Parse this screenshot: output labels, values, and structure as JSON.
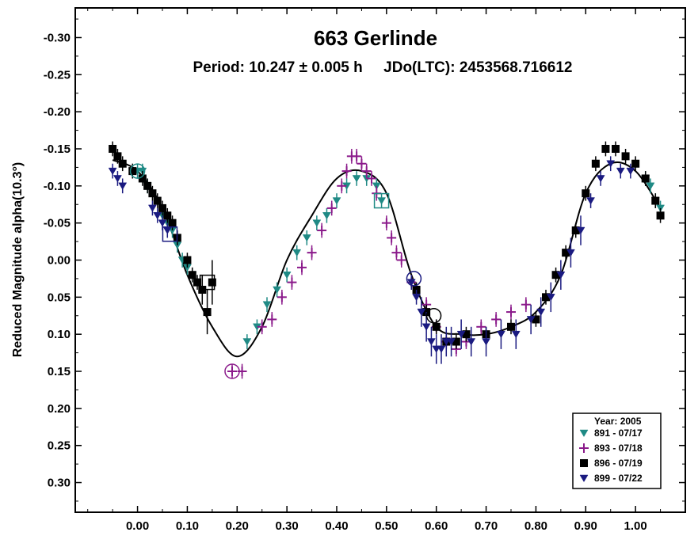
{
  "chart_data": {
    "type": "scatter",
    "title": "663 Gerlinde",
    "subtitle": "Period: 10.247 ± 0.005 h     JDo(LTC): 2453568.716612",
    "xlabel": "",
    "ylabel": "Reduced Magnitude alpha(10.3°)",
    "xlim": [
      -0.125,
      1.1
    ],
    "ylim": [
      -0.34,
      0.34
    ],
    "y_inverted": true,
    "grid": false,
    "x_ticks": [
      "0.00",
      "0.10",
      "0.20",
      "0.30",
      "0.40",
      "0.50",
      "0.60",
      "0.70",
      "0.80",
      "0.90",
      "1.00"
    ],
    "y_ticks": [
      "-0.30",
      "-0.25",
      "-0.20",
      "-0.15",
      "-0.10",
      "-0.05",
      "0.00",
      "0.05",
      "0.10",
      "0.15",
      "0.20",
      "0.25",
      "0.30"
    ],
    "legend": {
      "title": "Year: 2005",
      "placement": "bottom-right",
      "entries": [
        "891 - 07/17",
        "893 - 07/18",
        "896 - 07/19",
        "899 - 07/22"
      ]
    },
    "fit_curve": {
      "x": [
        -0.05,
        0.0,
        0.05,
        0.1,
        0.15,
        0.2,
        0.25,
        0.3,
        0.35,
        0.4,
        0.45,
        0.5,
        0.55,
        0.6,
        0.65,
        0.7,
        0.75,
        0.8,
        0.85,
        0.9,
        0.95,
        1.0,
        1.05
      ],
      "y": [
        -0.135,
        -0.12,
        -0.07,
        0.02,
        0.09,
        0.13,
        0.09,
        0.0,
        -0.06,
        -0.11,
        -0.12,
        -0.09,
        0.02,
        0.09,
        0.1,
        0.1,
        0.09,
        0.07,
        0.02,
        -0.09,
        -0.13,
        -0.12,
        -0.07
      ]
    },
    "series": [
      {
        "name": "891 - 07/17",
        "color": "#1f8a85",
        "marker": "triangle-down",
        "x": [
          -0.01,
          0.0,
          0.01,
          0.02,
          0.05,
          0.06,
          0.07,
          0.08,
          0.09,
          0.1,
          0.11,
          0.22,
          0.24,
          0.26,
          0.28,
          0.3,
          0.32,
          0.34,
          0.36,
          0.38,
          0.4,
          0.42,
          0.44,
          0.46,
          0.48,
          0.49,
          1.02,
          1.03,
          1.04,
          1.05
        ],
        "y": [
          -0.12,
          -0.12,
          -0.12,
          -0.1,
          -0.06,
          -0.05,
          -0.04,
          -0.02,
          0.0,
          0.01,
          0.02,
          0.11,
          0.09,
          0.06,
          0.04,
          0.02,
          -0.01,
          -0.03,
          -0.05,
          -0.06,
          -0.08,
          -0.1,
          -0.11,
          -0.11,
          -0.1,
          -0.08,
          -0.11,
          -0.1,
          -0.08,
          -0.07
        ],
        "errors": [
          0.01,
          0.01,
          0.01,
          0.01,
          0.01,
          0.01,
          0.01,
          0.01,
          0.01,
          0.01,
          0.01,
          0.01,
          0.01,
          0.01,
          0.01,
          0.01,
          0.01,
          0.01,
          0.01,
          0.01,
          0.01,
          0.01,
          0.01,
          0.01,
          0.01,
          0.01,
          0.01,
          0.01,
          0.01,
          0.01
        ]
      },
      {
        "name": "893 - 07/18",
        "color": "#8b1a8b",
        "marker": "plus",
        "x": [
          0.19,
          0.21,
          0.25,
          0.27,
          0.29,
          0.31,
          0.33,
          0.35,
          0.37,
          0.39,
          0.41,
          0.42,
          0.43,
          0.44,
          0.45,
          0.46,
          0.47,
          0.48,
          0.5,
          0.51,
          0.52,
          0.53,
          0.55,
          0.58,
          0.6,
          0.62,
          0.64,
          0.66,
          0.69,
          0.72,
          0.75,
          0.78
        ],
        "y": [
          0.15,
          0.15,
          0.09,
          0.08,
          0.05,
          0.03,
          0.01,
          -0.01,
          -0.04,
          -0.07,
          -0.1,
          -0.12,
          -0.14,
          -0.14,
          -0.13,
          -0.12,
          -0.11,
          -0.09,
          -0.05,
          -0.03,
          -0.01,
          0.0,
          0.03,
          0.06,
          0.09,
          0.11,
          0.12,
          0.11,
          0.09,
          0.08,
          0.07,
          0.06
        ],
        "errors": [
          0.01,
          0.01,
          0.01,
          0.01,
          0.01,
          0.01,
          0.01,
          0.01,
          0.01,
          0.01,
          0.01,
          0.01,
          0.01,
          0.01,
          0.01,
          0.01,
          0.01,
          0.01,
          0.01,
          0.01,
          0.01,
          0.01,
          0.01,
          0.01,
          0.01,
          0.01,
          0.01,
          0.01,
          0.01,
          0.01,
          0.01,
          0.01
        ]
      },
      {
        "name": "896 - 07/19",
        "color": "#000000",
        "marker": "square",
        "x": [
          -0.05,
          -0.04,
          -0.03,
          -0.01,
          0.01,
          0.02,
          0.03,
          0.04,
          0.05,
          0.06,
          0.07,
          0.08,
          0.1,
          0.11,
          0.12,
          0.13,
          0.14,
          0.15,
          0.56,
          0.58,
          0.6,
          0.62,
          0.64,
          0.66,
          0.7,
          0.75,
          0.8,
          0.82,
          0.84,
          0.86,
          0.88,
          0.9,
          0.92,
          0.94,
          0.96,
          0.98,
          1.0,
          1.02,
          1.04,
          1.05
        ],
        "y": [
          -0.15,
          -0.14,
          -0.13,
          -0.12,
          -0.11,
          -0.1,
          -0.09,
          -0.08,
          -0.07,
          -0.06,
          -0.05,
          -0.03,
          0.0,
          0.02,
          0.03,
          0.04,
          0.07,
          0.03,
          0.04,
          0.07,
          0.09,
          0.11,
          0.11,
          0.1,
          0.1,
          0.09,
          0.08,
          0.05,
          0.02,
          -0.01,
          -0.04,
          -0.09,
          -0.13,
          -0.15,
          -0.15,
          -0.14,
          -0.13,
          -0.11,
          -0.08,
          -0.06
        ],
        "errors": [
          0.01,
          0.01,
          0.01,
          0.01,
          0.01,
          0.01,
          0.01,
          0.01,
          0.01,
          0.01,
          0.01,
          0.01,
          0.01,
          0.01,
          0.01,
          0.02,
          0.03,
          0.03,
          0.01,
          0.01,
          0.01,
          0.01,
          0.01,
          0.01,
          0.01,
          0.01,
          0.01,
          0.01,
          0.01,
          0.01,
          0.01,
          0.01,
          0.01,
          0.01,
          0.01,
          0.01,
          0.01,
          0.01,
          0.01,
          0.01
        ]
      },
      {
        "name": "899 - 07/22",
        "color": "#1a1a80",
        "marker": "triangle-down",
        "x": [
          -0.05,
          -0.04,
          -0.03,
          0.03,
          0.04,
          0.05,
          0.06,
          0.55,
          0.56,
          0.57,
          0.58,
          0.59,
          0.6,
          0.61,
          0.62,
          0.63,
          0.65,
          0.67,
          0.7,
          0.73,
          0.76,
          0.79,
          0.81,
          0.83,
          0.85,
          0.87,
          0.89,
          0.91,
          0.93,
          0.95,
          0.97,
          0.99
        ],
        "y": [
          -0.12,
          -0.11,
          -0.1,
          -0.07,
          -0.06,
          -0.05,
          -0.04,
          0.03,
          0.05,
          0.07,
          0.09,
          0.11,
          0.12,
          0.12,
          0.11,
          0.11,
          0.1,
          0.11,
          0.11,
          0.1,
          0.1,
          0.08,
          0.07,
          0.05,
          0.02,
          -0.01,
          -0.04,
          -0.08,
          -0.11,
          -0.13,
          -0.12,
          -0.12
        ],
        "errors": [
          0.01,
          0.01,
          0.01,
          0.01,
          0.01,
          0.01,
          0.01,
          0.01,
          0.01,
          0.02,
          0.02,
          0.02,
          0.02,
          0.02,
          0.02,
          0.02,
          0.02,
          0.02,
          0.02,
          0.02,
          0.02,
          0.02,
          0.02,
          0.02,
          0.02,
          0.02,
          0.02,
          0.01,
          0.01,
          0.01,
          0.01,
          0.01
        ]
      }
    ],
    "highlight_markers": [
      {
        "shape": "circle",
        "color": "#1f8a85",
        "x": 0.0,
        "y": -0.12
      },
      {
        "shape": "square",
        "color": "#1a1a80",
        "x": 0.065,
        "y": -0.035
      },
      {
        "shape": "square",
        "color": "#000000",
        "x": 0.14,
        "y": 0.03
      },
      {
        "shape": "circle",
        "color": "#8b1a8b",
        "x": 0.19,
        "y": 0.15
      },
      {
        "shape": "square",
        "color": "#1f8a85",
        "x": 0.49,
        "y": -0.08
      },
      {
        "shape": "circle",
        "color": "#1a1a80",
        "x": 0.555,
        "y": 0.025
      },
      {
        "shape": "circle",
        "color": "#000000",
        "x": 0.595,
        "y": 0.075
      }
    ]
  }
}
